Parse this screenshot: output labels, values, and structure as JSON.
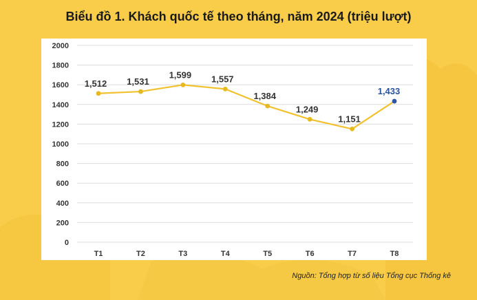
{
  "title": "Biểu đồ 1. Khách quốc tế theo tháng, năm 2024 (triệu lượt)",
  "source": "Nguồn: Tổng hợp từ số liệu Tổng cục Thống kê",
  "colors": {
    "background": "#f9cd4a",
    "line": "#f2c12e",
    "point": "#e8b820",
    "highlight_point": "#2f56a5",
    "highlight_label": "#2a5298",
    "grid": "#dcdcdc"
  },
  "chart_data": {
    "type": "line",
    "title": "Biểu đồ 1. Khách quốc tế theo tháng, năm 2024 (triệu lượt)",
    "xlabel": "",
    "ylabel": "",
    "categories": [
      "T1",
      "T2",
      "T3",
      "T4",
      "T5",
      "T6",
      "T7",
      "T8"
    ],
    "values": [
      1512,
      1531,
      1599,
      1557,
      1384,
      1249,
      1151,
      1433
    ],
    "data_labels": [
      "1,512",
      "1,531",
      "1,599",
      "1,557",
      "1,384",
      "1,249",
      "1,151",
      "1,433"
    ],
    "highlight_index": 7,
    "ylim": [
      0,
      2000
    ],
    "yticks": [
      0,
      200,
      400,
      600,
      800,
      1000,
      1200,
      1400,
      1600,
      1800,
      2000
    ],
    "grid": true
  }
}
